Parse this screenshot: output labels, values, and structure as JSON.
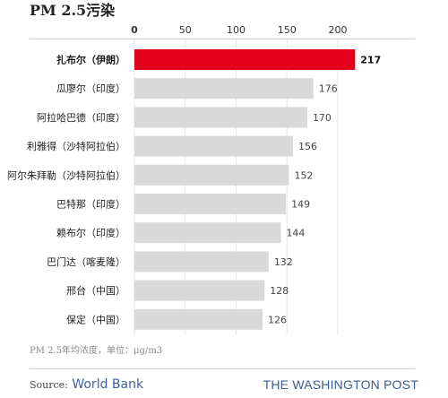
{
  "title": "PM 2.5污染",
  "footnote": "PM 2.5年均浓度，单位：μg/m3",
  "source_label": "Source:",
  "source_value": "World Bank",
  "brand": "THE WASHINGTON POST",
  "colors": {
    "highlight": "#e3001b",
    "bar": "#d9d9d9",
    "value_text": "#444444",
    "axis_text": "#333333"
  },
  "chart_data": {
    "type": "bar",
    "orientation": "horizontal",
    "categories": [
      "扎布尔（伊朗）",
      "瓜廖尔（印度）",
      "阿拉哈巴德（印度）",
      "利雅得（沙特阿拉伯）",
      "阿尔朱拜勒（沙特阿拉伯）",
      "巴特那（印度）",
      "赖布尔（印度）",
      "巴门达（喀麦隆）",
      "邢台（中国）",
      "保定（中国）"
    ],
    "values": [
      217,
      176,
      170,
      156,
      152,
      149,
      144,
      132,
      128,
      126
    ],
    "value_labels": [
      "217",
      "176",
      "170",
      "156",
      "152",
      "149",
      "144",
      "132",
      "128",
      "126"
    ],
    "highlight_index": 0,
    "ticks": [
      0,
      50,
      100,
      150,
      200
    ],
    "tick_labels": [
      "0",
      "50",
      "100",
      "150",
      "200"
    ],
    "xlim": [
      0,
      217
    ],
    "axis_position": "top",
    "grid": true,
    "legend": "none"
  }
}
